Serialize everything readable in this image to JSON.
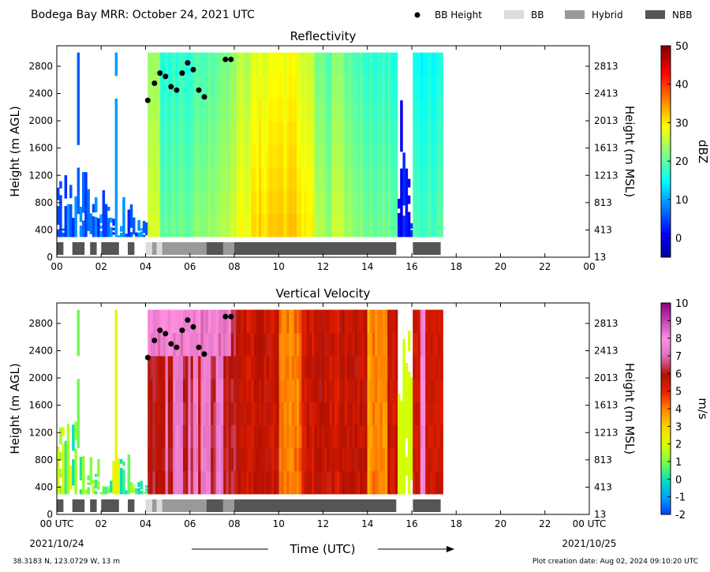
{
  "header": {
    "title": "Bodega Bay MRR:  October 24, 2021 UTC",
    "legend": [
      {
        "label": "BB Height",
        "kind": "dot",
        "color": "#000000"
      },
      {
        "label": "BB",
        "kind": "patch",
        "color": "#dcdcdc"
      },
      {
        "label": "Hybrid",
        "kind": "patch",
        "color": "#999999"
      },
      {
        "label": "NBB",
        "kind": "patch",
        "color": "#555555"
      }
    ]
  },
  "footer": {
    "location": "38.3183 N, 123.0729 W, 13 m",
    "created": "Plot creation date: Aug 02, 2024 09:10:20 UTC",
    "xlabel": "Time (UTC)",
    "start_date": "2021/10/24",
    "end_date": "2021/10/25"
  },
  "chart_data": [
    {
      "type": "heatmap",
      "title": "Reflectivity",
      "ylabel": "Height (m AGL)",
      "ylabel_right": "Height (m MSL)",
      "colorbar_label": "dBZ",
      "x_ticks": [
        "00",
        "02",
        "04",
        "06",
        "08",
        "10",
        "12",
        "14",
        "16",
        "18",
        "20",
        "22",
        "00"
      ],
      "xlim": [
        0,
        24
      ],
      "ylim": [
        0,
        3100
      ],
      "y_ticks": [
        0,
        400,
        800,
        1200,
        1600,
        2000,
        2400,
        2800
      ],
      "y_ticks_right": [
        "13",
        "413",
        "813",
        "1213",
        "1613",
        "2013",
        "2413",
        "2813"
      ],
      "color_range": [
        -5,
        50
      ],
      "color_ticks": [
        "0",
        "10",
        "20",
        "30",
        "40",
        "50"
      ],
      "bb_height": {
        "x": [
          4.1,
          4.4,
          4.65,
          4.9,
          5.15,
          5.4,
          5.65,
          5.9,
          6.15,
          6.4,
          6.65,
          7.6,
          7.85
        ],
        "y": [
          2300,
          2550,
          2700,
          2650,
          2500,
          2450,
          2700,
          2850,
          2750,
          2450,
          2350,
          2900,
          2900
        ]
      },
      "bb_type_bar": [
        {
          "start": 0.0,
          "end": 0.3,
          "type": "NBB"
        },
        {
          "start": 0.7,
          "end": 1.25,
          "type": "NBB"
        },
        {
          "start": 1.5,
          "end": 1.8,
          "type": "NBB"
        },
        {
          "start": 2.0,
          "end": 2.8,
          "type": "NBB"
        },
        {
          "start": 3.2,
          "end": 3.5,
          "type": "NBB"
        },
        {
          "start": 4.0,
          "end": 4.3,
          "type": "BB"
        },
        {
          "start": 4.3,
          "end": 4.5,
          "type": "Hybrid"
        },
        {
          "start": 4.5,
          "end": 4.75,
          "type": "BB"
        },
        {
          "start": 4.75,
          "end": 6.75,
          "type": "Hybrid"
        },
        {
          "start": 6.75,
          "end": 7.5,
          "type": "NBB"
        },
        {
          "start": 7.5,
          "end": 8.0,
          "type": "Hybrid"
        },
        {
          "start": 8.0,
          "end": 15.3,
          "type": "NBB"
        },
        {
          "start": 16.05,
          "end": 17.3,
          "type": "NBB"
        }
      ]
    },
    {
      "type": "heatmap",
      "title": "Vertical Velocity",
      "ylabel": "Height (m AGL)",
      "ylabel_right": "Height (m MSL)",
      "colorbar_label": "m/s",
      "x_ticks": [
        "00 UTC",
        "02",
        "04",
        "06",
        "08",
        "10",
        "12",
        "14",
        "16",
        "18",
        "20",
        "22",
        "00 UTC"
      ],
      "xlim": [
        0,
        24
      ],
      "ylim": [
        0,
        3100
      ],
      "y_ticks": [
        0,
        400,
        800,
        1200,
        1600,
        2000,
        2400,
        2800
      ],
      "y_ticks_right": [
        "13",
        "413",
        "813",
        "1213",
        "1613",
        "2013",
        "2413",
        "2813"
      ],
      "color_range": [
        -2,
        10
      ],
      "color_ticks": [
        "-2",
        "-1",
        "0",
        "1",
        "2",
        "3",
        "4",
        "5",
        "6",
        "7",
        "8",
        "9",
        "10"
      ],
      "bb_height": {
        "x": [
          4.1,
          4.4,
          4.65,
          4.9,
          5.15,
          5.4,
          5.65,
          5.9,
          6.15,
          6.4,
          6.65,
          7.6,
          7.85
        ],
        "y": [
          2300,
          2550,
          2700,
          2650,
          2500,
          2450,
          2700,
          2850,
          2750,
          2450,
          2350,
          2900,
          2900
        ]
      },
      "bb_type_bar": [
        {
          "start": 0.0,
          "end": 0.3,
          "type": "NBB"
        },
        {
          "start": 0.7,
          "end": 1.25,
          "type": "NBB"
        },
        {
          "start": 1.5,
          "end": 1.8,
          "type": "NBB"
        },
        {
          "start": 2.0,
          "end": 2.8,
          "type": "NBB"
        },
        {
          "start": 3.2,
          "end": 3.5,
          "type": "NBB"
        },
        {
          "start": 4.0,
          "end": 4.3,
          "type": "BB"
        },
        {
          "start": 4.3,
          "end": 4.5,
          "type": "Hybrid"
        },
        {
          "start": 4.5,
          "end": 4.75,
          "type": "BB"
        },
        {
          "start": 4.75,
          "end": 6.75,
          "type": "Hybrid"
        },
        {
          "start": 6.75,
          "end": 7.5,
          "type": "NBB"
        },
        {
          "start": 7.5,
          "end": 8.0,
          "type": "Hybrid"
        },
        {
          "start": 8.0,
          "end": 15.3,
          "type": "NBB"
        },
        {
          "start": 16.05,
          "end": 17.3,
          "type": "NBB"
        }
      ]
    }
  ]
}
